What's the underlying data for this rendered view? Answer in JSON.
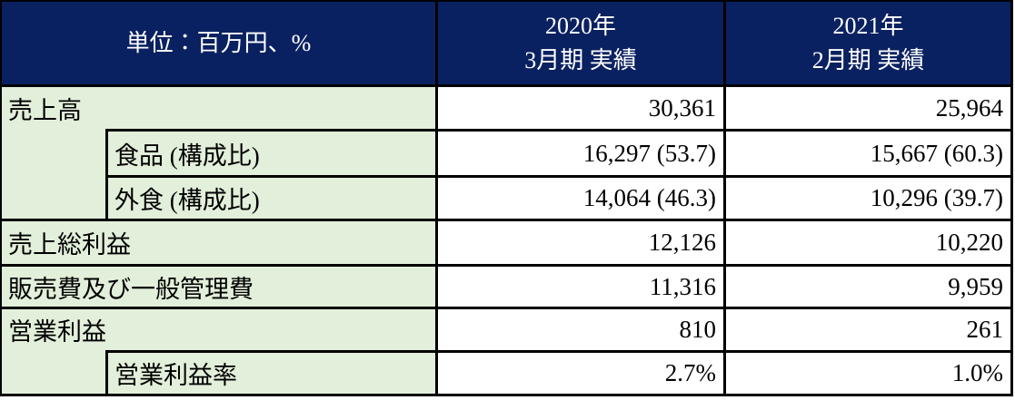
{
  "table": {
    "unit_header": "単位：百万円、%",
    "column_headers": [
      {
        "year": "2020年",
        "period": "3月期 実績"
      },
      {
        "year": "2021年",
        "period": "2月期 実績"
      }
    ],
    "rows": [
      {
        "label": "売上高",
        "indent": false,
        "values": [
          "30,361",
          "25,964"
        ]
      },
      {
        "label": "食品 (構成比)",
        "indent": true,
        "values": [
          "16,297 (53.7)",
          "15,667 (60.3)"
        ]
      },
      {
        "label": "外食 (構成比)",
        "indent": true,
        "values": [
          "14,064 (46.3)",
          "10,296 (39.7)"
        ]
      },
      {
        "label": "売上総利益",
        "indent": false,
        "values": [
          "12,126",
          "10,220"
        ]
      },
      {
        "label": "販売費及び一般管理費",
        "indent": false,
        "values": [
          "11,316",
          "9,959"
        ]
      },
      {
        "label": "営業利益",
        "indent": false,
        "values": [
          "810",
          "261"
        ]
      },
      {
        "label": "営業利益率",
        "indent": true,
        "values": [
          "2.7%",
          "1.0%"
        ]
      }
    ]
  },
  "colors": {
    "header_bg": "#0a2161",
    "label_bg": "#e2efda",
    "value_bg": "#ffffff",
    "border": "#000000",
    "header_text": "#ffffff",
    "body_text": "#000000"
  }
}
